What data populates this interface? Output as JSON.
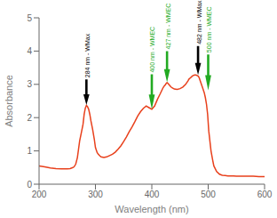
{
  "chart_data": {
    "type": "line",
    "xlabel": "Wavelength (nm)",
    "ylabel": "Absorbance",
    "xlim": [
      200,
      600
    ],
    "ylim": [
      0,
      5
    ],
    "xticks": [
      200,
      300,
      400,
      500,
      600
    ],
    "yticks": [
      0,
      1,
      2,
      3,
      4,
      5
    ],
    "color": "#e8401c",
    "grid": false,
    "x": [
      200,
      210,
      220,
      230,
      240,
      250,
      255,
      260,
      262,
      265,
      268,
      270,
      272,
      275,
      278,
      280,
      282,
      284,
      286,
      288,
      290,
      292,
      295,
      298,
      300,
      303,
      305,
      308,
      310,
      315,
      320,
      325,
      330,
      335,
      340,
      345,
      350,
      355,
      360,
      365,
      370,
      375,
      380,
      385,
      390,
      395,
      400,
      405,
      410,
      415,
      420,
      422,
      424,
      426,
      427,
      428,
      430,
      432,
      434,
      436,
      438,
      440,
      445,
      450,
      455,
      460,
      462,
      464,
      465,
      466,
      468,
      470,
      472,
      474,
      476,
      478,
      480,
      481,
      482,
      483,
      484,
      485,
      487,
      490,
      493,
      495,
      497,
      499,
      500,
      501,
      503,
      505,
      508,
      510,
      515,
      520,
      525,
      530,
      535,
      540,
      545,
      550,
      560,
      570,
      580,
      590,
      600
    ],
    "values": [
      0.55,
      0.52,
      0.49,
      0.47,
      0.46,
      0.46,
      0.47,
      0.5,
      0.52,
      0.6,
      0.8,
      1.05,
      1.3,
      1.55,
      1.8,
      2.1,
      2.28,
      2.37,
      2.33,
      2.25,
      2.1,
      1.9,
      1.65,
      1.35,
      1.1,
      0.95,
      0.9,
      0.85,
      0.82,
      0.8,
      0.82,
      0.86,
      0.9,
      0.96,
      1.05,
      1.15,
      1.28,
      1.42,
      1.58,
      1.72,
      1.88,
      2.05,
      2.18,
      2.28,
      2.35,
      2.3,
      2.25,
      2.35,
      2.55,
      2.72,
      2.9,
      2.95,
      2.99,
      3.04,
      3.05,
      3.04,
      3.0,
      2.96,
      2.92,
      2.9,
      2.88,
      2.86,
      2.85,
      2.87,
      2.92,
      3.0,
      3.05,
      3.1,
      3.13,
      3.16,
      3.19,
      3.22,
      3.25,
      3.27,
      3.28,
      3.28,
      3.27,
      3.26,
      3.25,
      3.23,
      3.2,
      3.15,
      3.05,
      2.9,
      2.75,
      2.6,
      2.4,
      2.1,
      1.85,
      1.6,
      1.3,
      1.0,
      0.72,
      0.55,
      0.38,
      0.3,
      0.27,
      0.26,
      0.25,
      0.25,
      0.25,
      0.24,
      0.24,
      0.24,
      0.24,
      0.23,
      0.23
    ],
    "annotations": [
      {
        "x": 284,
        "y_tip": 2.38,
        "y_base": 3.15,
        "text": "284 nm - WMax",
        "color": "black"
      },
      {
        "x": 400,
        "y_tip": 2.25,
        "y_base": 3.3,
        "text": "400 nm - WMEC",
        "color": "#22aa22"
      },
      {
        "x": 427,
        "y_tip": 3.06,
        "y_base": 4.0,
        "text": "427 nm - WMEC",
        "color": "#22aa22"
      },
      {
        "x": 482,
        "y_tip": 3.28,
        "y_base": 4.15,
        "text": "482 nm - WMax",
        "color": "black"
      },
      {
        "x": 500,
        "y_tip": 2.82,
        "y_base": 3.9,
        "text": "500 nm - WMEC",
        "color": "#22aa22"
      }
    ]
  }
}
